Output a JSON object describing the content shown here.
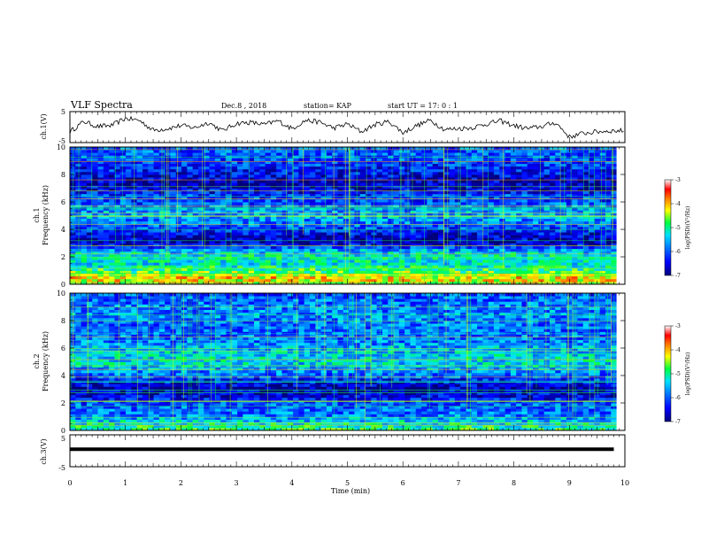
{
  "header": {
    "title": "VLF Spectra",
    "date": "Dec.8 , 2018",
    "station": "station= KAP",
    "start": "start  UT =   17: 0  : 1"
  },
  "colors": {
    "colormap": [
      "#00007a",
      "#0000ff",
      "#0080ff",
      "#00e0ff",
      "#00ff40",
      "#ffff00",
      "#ff8000",
      "#ff0000",
      "#ffffff"
    ]
  },
  "chart_data": [
    {
      "type": "line",
      "panel": "ch1-waveform",
      "ylabel": "ch.1(V)",
      "ylim": [
        -5,
        5
      ],
      "yticks": [
        "5",
        "-5"
      ],
      "x": [
        0,
        0.25,
        0.5,
        0.75,
        1,
        1.25,
        1.5,
        1.75,
        2,
        2.25,
        2.5,
        2.75,
        3,
        3.25,
        3.5,
        3.75,
        4,
        4.25,
        4.5,
        4.75,
        5,
        5.25,
        5.5,
        5.75,
        6,
        6.25,
        6.5,
        6.75,
        7,
        7.25,
        7.5,
        7.75,
        8,
        8.25,
        8.5,
        8.75,
        9,
        9.25,
        9.5,
        9.75
      ],
      "y": [
        -1.5,
        1.8,
        0.2,
        0.5,
        2.8,
        2.2,
        -1,
        -0.5,
        0.5,
        -0.2,
        1.5,
        -1.2,
        1.2,
        1.5,
        0.8,
        2,
        -0.5,
        2.2,
        1.6,
        -0.3,
        1,
        -1.5,
        0.8,
        1.8,
        -1.8,
        0.5,
        2.2,
        -0.8,
        -0.5,
        -0.2,
        1,
        2,
        0.5,
        -0.5,
        0.2,
        1.5,
        -3.2,
        -2,
        -1.5,
        -1.2
      ]
    },
    {
      "type": "heatmap",
      "panel": "ch1-spectrogram",
      "ylabel_top": "ch.1",
      "ylabel": "Frequency (kHz)",
      "ylim": [
        0,
        10
      ],
      "yticks": [
        "0",
        "2",
        "4",
        "6",
        "8",
        "10"
      ],
      "colorbar_label": "log(PSD)(V²/Hz)",
      "colorbar_range": [
        -7,
        -3
      ],
      "colorbar_ticks": [
        "-3",
        "-4",
        "-5",
        "-6",
        "-7"
      ],
      "freq_profile": [
        [
          0,
          3.0
        ],
        [
          0.5,
          3.2
        ],
        [
          1,
          2.4
        ],
        [
          1.5,
          1.9
        ],
        [
          2,
          2.1
        ],
        [
          2.5,
          1.5
        ],
        [
          3,
          0.3
        ],
        [
          3.5,
          0.4
        ],
        [
          4,
          0.9
        ],
        [
          4.5,
          1.3
        ],
        [
          5,
          1.6
        ],
        [
          5.5,
          1.4
        ],
        [
          6,
          1.0
        ],
        [
          6.5,
          0.9
        ],
        [
          7,
          0.4
        ],
        [
          7.5,
          0.3
        ],
        [
          8,
          0.6
        ],
        [
          8.5,
          0.8
        ],
        [
          9,
          1.0
        ],
        [
          9.5,
          1.1
        ],
        [
          10,
          1.2
        ]
      ]
    },
    {
      "type": "heatmap",
      "panel": "ch2-spectrogram",
      "ylabel_top": "ch.2",
      "ylabel": "Frequency (kHz)",
      "ylim": [
        0,
        10
      ],
      "yticks": [
        "0",
        "2",
        "4",
        "6",
        "8",
        "10"
      ],
      "colorbar_label": "log(PSD)(V²/Hz)",
      "colorbar_range": [
        -7,
        -3
      ],
      "colorbar_ticks": [
        "-3",
        "-4",
        "-5",
        "-6",
        "-7"
      ],
      "freq_profile": [
        [
          0,
          2.4
        ],
        [
          0.5,
          2.0
        ],
        [
          1,
          1.4
        ],
        [
          1.5,
          1.2
        ],
        [
          2,
          1.1
        ],
        [
          2.5,
          0.5
        ],
        [
          3,
          0.3
        ],
        [
          3.5,
          0.5
        ],
        [
          4,
          1.2
        ],
        [
          4.5,
          1.5
        ],
        [
          5,
          1.9
        ],
        [
          5.5,
          1.8
        ],
        [
          6,
          1.6
        ],
        [
          6.5,
          1.3
        ],
        [
          7,
          1.2
        ],
        [
          7.5,
          1.2
        ],
        [
          8,
          1.3
        ],
        [
          8.5,
          1.4
        ],
        [
          9,
          1.3
        ],
        [
          9.5,
          1.2
        ],
        [
          10,
          1.1
        ]
      ]
    },
    {
      "type": "line",
      "panel": "ch3-waveform",
      "ylabel": "ch.3(V)",
      "ylim": [
        -5,
        5
      ],
      "yticks": [
        "5",
        "-5"
      ],
      "x": [
        0,
        9.8
      ],
      "y": [
        0.5,
        0.5
      ]
    }
  ],
  "xaxis": {
    "label": "Time  (min)",
    "range": [
      0,
      10
    ],
    "ticks": [
      "0",
      "1",
      "2",
      "3",
      "4",
      "5",
      "6",
      "7",
      "8",
      "9",
      "10"
    ]
  }
}
